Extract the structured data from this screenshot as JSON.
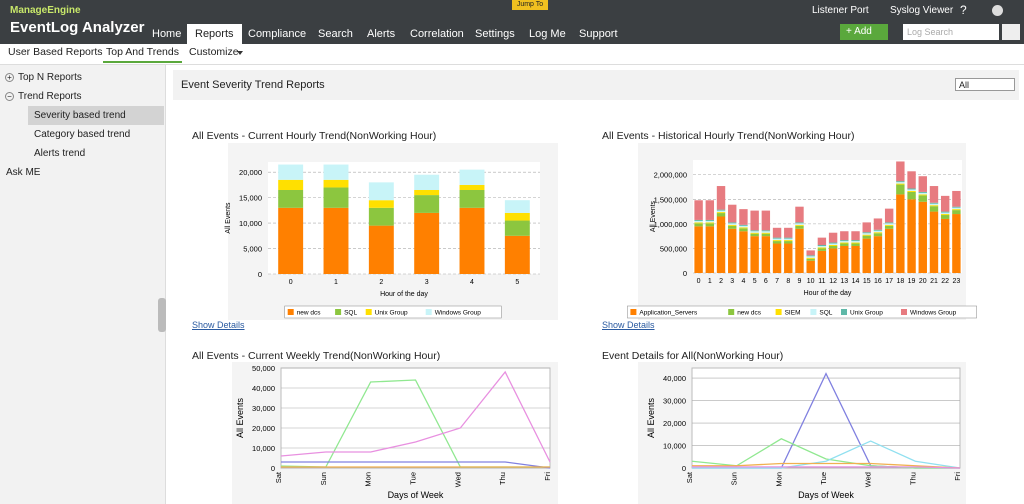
{
  "header": {
    "brand": "ManageEngine",
    "product": "EventLog Analyzer",
    "jump_to": "Jump To",
    "nav": [
      "Home",
      "Reports",
      "Compliance",
      "Search",
      "Alerts",
      "Correlation",
      "Settings",
      "Log Me",
      "Support"
    ],
    "active_nav": 1,
    "links": [
      "Listener Port",
      "Syslog Viewer",
      "?"
    ],
    "add_button": "+ Add",
    "search_placeholder": "Log Search"
  },
  "subnav": {
    "items": [
      "User Based Reports",
      "Top And Trends",
      "Customize"
    ],
    "active": 1
  },
  "sidebar": {
    "items": [
      {
        "label": "Top N Reports",
        "expanded": false,
        "children": []
      },
      {
        "label": "Trend Reports",
        "expanded": true,
        "children": [
          "Severity based trend",
          "Category based trend",
          "Alerts trend"
        ]
      },
      {
        "label": "Ask ME",
        "children": []
      }
    ],
    "selected": "Severity based trend"
  },
  "content": {
    "title": "Event Severity Trend Reports",
    "filter": "All",
    "show_details": "Show Details"
  },
  "charts": [
    {
      "type": "stacked_bar",
      "title": "All Events - Current Hourly Trend(NonWorking Hour)",
      "ylabel": "All Events",
      "xlabel": "Hour of the day",
      "categories": [
        "0",
        "1",
        "2",
        "3",
        "4",
        "5"
      ],
      "ylim": [
        0,
        22000
      ],
      "yticks": [
        0,
        {
          "value": 5000,
          "label": "5,000"
        },
        {
          "value": 10000,
          "label": "10,000"
        },
        {
          "value": 15000,
          "label": "15,000"
        },
        {
          "value": 20000,
          "label": "20,000"
        }
      ],
      "legend": "bottom",
      "series": [
        {
          "name": "new dcs",
          "color": "#ff8000",
          "values": [
            13000,
            13000,
            9500,
            12000,
            13000,
            7500
          ]
        },
        {
          "name": "SQL",
          "color": "#8cc63f",
          "values": [
            3500,
            4000,
            3500,
            3500,
            3500,
            3000
          ]
        },
        {
          "name": "Unix Group",
          "color": "#ffe000",
          "values": [
            2000,
            1500,
            1500,
            1000,
            1000,
            1500
          ]
        },
        {
          "name": "Windows Group",
          "color": "#c8f4f8",
          "values": [
            3000,
            3000,
            3500,
            3000,
            3000,
            2500
          ]
        }
      ]
    },
    {
      "type": "stacked_bar",
      "title": "All Events - Historical Hourly Trend(NonWorking Hour)",
      "ylabel": "All Events",
      "xlabel": "Hour of the day",
      "categories": [
        "0",
        "1",
        "2",
        "3",
        "4",
        "5",
        "6",
        "7",
        "8",
        "9",
        "10",
        "11",
        "12",
        "13",
        "14",
        "15",
        "16",
        "17",
        "18",
        "19",
        "20",
        "21",
        "22",
        "23"
      ],
      "ylim": [
        0,
        2300000
      ],
      "yticks": [
        0,
        {
          "value": 500000,
          "label": "500,000"
        },
        {
          "value": 1000000,
          "label": "1,000,000"
        },
        {
          "value": 1500000,
          "label": "1,500,000"
        },
        {
          "value": 2000000,
          "label": "2,000,000"
        }
      ],
      "legend": "bottom",
      "series": [
        {
          "name": "Application_Servers",
          "color": "#ff8000",
          "values": [
            950000,
            950000,
            1150000,
            900000,
            850000,
            750000,
            750000,
            600000,
            600000,
            900000,
            250000,
            450000,
            500000,
            550000,
            550000,
            700000,
            750000,
            900000,
            1600000,
            1500000,
            1450000,
            1250000,
            1100000,
            1200000
          ]
        },
        {
          "name": "new dcs",
          "color": "#8cc63f",
          "values": [
            60000,
            60000,
            70000,
            60000,
            60000,
            50000,
            50000,
            50000,
            50000,
            60000,
            40000,
            50000,
            50000,
            50000,
            50000,
            60000,
            60000,
            60000,
            200000,
            150000,
            130000,
            110000,
            80000,
            80000
          ]
        },
        {
          "name": "SIEM",
          "color": "#ffe000",
          "values": [
            20000,
            20000,
            20000,
            20000,
            20000,
            20000,
            20000,
            20000,
            20000,
            20000,
            20000,
            20000,
            20000,
            20000,
            20000,
            20000,
            20000,
            20000,
            20000,
            20000,
            20000,
            20000,
            20000,
            20000
          ]
        },
        {
          "name": "SQL",
          "color": "#c8f4f8",
          "values": [
            30000,
            30000,
            30000,
            30000,
            30000,
            30000,
            30000,
            30000,
            30000,
            30000,
            30000,
            30000,
            30000,
            30000,
            30000,
            30000,
            30000,
            30000,
            30000,
            30000,
            30000,
            30000,
            30000,
            30000
          ]
        },
        {
          "name": "Unix Group",
          "color": "#5fb8a8",
          "values": [
            20000,
            20000,
            20000,
            20000,
            20000,
            20000,
            20000,
            20000,
            20000,
            20000,
            20000,
            20000,
            20000,
            20000,
            20000,
            20000,
            20000,
            20000,
            20000,
            20000,
            20000,
            20000,
            20000,
            20000
          ]
        },
        {
          "name": "Windows Group",
          "color": "#e77b80",
          "values": [
            400000,
            400000,
            480000,
            360000,
            320000,
            400000,
            400000,
            200000,
            200000,
            320000,
            100000,
            150000,
            200000,
            180000,
            180000,
            200000,
            230000,
            280000,
            400000,
            350000,
            320000,
            340000,
            320000,
            320000
          ]
        }
      ]
    },
    {
      "type": "line",
      "title": "All Events - Current Weekly Trend(NonWorking Hour)",
      "ylabel": "All Events",
      "xlabel": "Days of Week",
      "categories": [
        "Sat",
        "Sun",
        "Mon",
        "Tue",
        "Wed",
        "Thu",
        "Fri"
      ],
      "ylim": [
        0,
        50000
      ],
      "yticks": [
        0,
        {
          "value": 10000,
          "label": "10,000"
        },
        {
          "value": 20000,
          "label": "20,000"
        },
        {
          "value": 30000,
          "label": "30,000"
        },
        {
          "value": 40000,
          "label": "40,000"
        },
        {
          "value": 50000,
          "label": "50,000"
        }
      ],
      "series": [
        {
          "color": "#90e890",
          "values": [
            1000,
            500,
            43000,
            44000,
            500,
            500,
            500
          ]
        },
        {
          "color": "#e890e0",
          "values": [
            6000,
            8000,
            8000,
            13000,
            20000,
            48000,
            3000
          ]
        },
        {
          "color": "#8080e0",
          "values": [
            3000,
            3000,
            3000,
            3000,
            3000,
            3000,
            0
          ]
        },
        {
          "color": "#f0b050",
          "values": [
            500,
            500,
            500,
            500,
            500,
            500,
            500
          ]
        }
      ]
    },
    {
      "type": "line",
      "title": "Event Details for All(NonWorking Hour)",
      "ylabel": "All Events",
      "xlabel": "Days of Week",
      "categories": [
        "Sat",
        "Sun",
        "Mon",
        "Tue",
        "Wed",
        "Thu",
        "Fri"
      ],
      "ylim": [
        0,
        44500
      ],
      "yticks": [
        0,
        {
          "value": 10000,
          "label": "10,000"
        },
        {
          "value": 20000,
          "label": "20,000"
        },
        {
          "value": 30000,
          "label": "30,000"
        },
        {
          "value": 40000,
          "label": "40,000"
        }
      ],
      "series": [
        {
          "color": "#8080e0",
          "values": [
            0,
            0,
            0,
            42000,
            1000,
            0,
            0
          ]
        },
        {
          "color": "#90e890",
          "values": [
            3000,
            1000,
            13000,
            4000,
            1000,
            0,
            0
          ]
        },
        {
          "color": "#90e0f0",
          "values": [
            0,
            0,
            0,
            3000,
            12000,
            3000,
            0
          ]
        },
        {
          "color": "#f0b050",
          "values": [
            1000,
            1000,
            2000,
            2000,
            2000,
            1000,
            0
          ]
        },
        {
          "color": "#e890e0",
          "values": [
            500,
            500,
            500,
            500,
            500,
            500,
            0
          ]
        }
      ]
    }
  ]
}
